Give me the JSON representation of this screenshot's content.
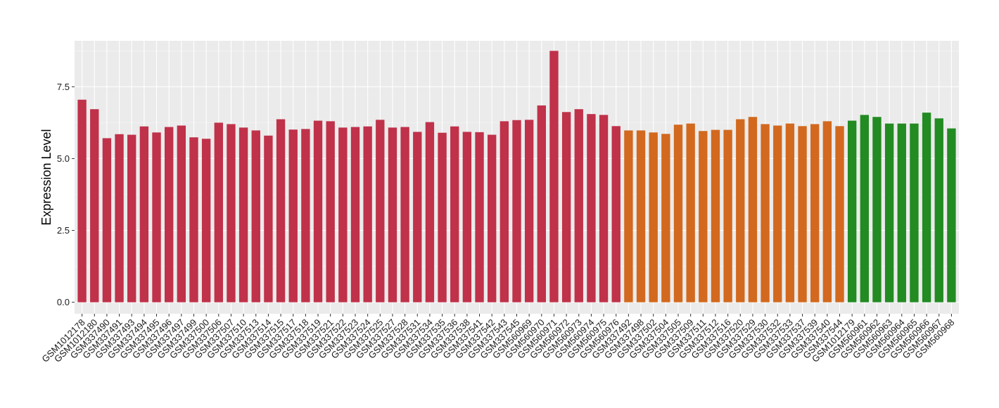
{
  "chart_data": {
    "type": "bar",
    "title": "",
    "xlabel": "",
    "ylabel": "Expression Level",
    "ylim": [
      -0.4,
      9.1
    ],
    "yticks": [
      0.0,
      2.5,
      5.0,
      7.5
    ],
    "ytick_labels": [
      "0.0",
      "2.5",
      "5.0",
      "7.5"
    ],
    "grid": true,
    "legend": "none",
    "categories": [
      "GSM1012178",
      "GSM1012180",
      "GSM337490",
      "GSM337491",
      "GSM337493",
      "GSM337494",
      "GSM337495",
      "GSM337496",
      "GSM337497",
      "GSM337499",
      "GSM337500",
      "GSM337506",
      "GSM337507",
      "GSM337510",
      "GSM337513",
      "GSM337514",
      "GSM337515",
      "GSM337517",
      "GSM337518",
      "GSM337519",
      "GSM337521",
      "GSM337522",
      "GSM337523",
      "GSM337524",
      "GSM337525",
      "GSM337527",
      "GSM337528",
      "GSM337531",
      "GSM337534",
      "GSM337535",
      "GSM337536",
      "GSM337538",
      "GSM337541",
      "GSM337542",
      "GSM337543",
      "GSM337545",
      "GSM560969",
      "GSM560970",
      "GSM560971",
      "GSM560972",
      "GSM560973",
      "GSM560974",
      "GSM560975",
      "GSM560976",
      "GSM337492",
      "GSM337498",
      "GSM337502",
      "GSM337504",
      "GSM337505",
      "GSM337509",
      "GSM337511",
      "GSM337512",
      "GSM337516",
      "GSM337520",
      "GSM337529",
      "GSM337530",
      "GSM337532",
      "GSM337533",
      "GSM337537",
      "GSM337539",
      "GSM337540",
      "GSM337544",
      "GSM1012179",
      "GSM560961",
      "GSM560962",
      "GSM560963",
      "GSM560964",
      "GSM560965",
      "GSM560966",
      "GSM560967",
      "GSM560968"
    ],
    "values": [
      7.05,
      6.72,
      5.71,
      5.85,
      5.83,
      6.12,
      5.91,
      6.1,
      6.15,
      5.74,
      5.69,
      6.25,
      6.2,
      6.08,
      5.98,
      5.8,
      6.37,
      6.01,
      6.03,
      6.32,
      6.3,
      6.08,
      6.1,
      6.12,
      6.35,
      6.08,
      6.1,
      5.93,
      6.27,
      5.9,
      6.12,
      5.93,
      5.92,
      5.83,
      6.3,
      6.34,
      6.35,
      6.85,
      8.75,
      6.62,
      6.72,
      6.55,
      6.52,
      6.13,
      5.98,
      5.98,
      5.91,
      5.86,
      6.18,
      6.22,
      5.96,
      6.0,
      6.0,
      6.37,
      6.45,
      6.2,
      6.15,
      6.22,
      6.13,
      6.2,
      6.3,
      6.13,
      6.32,
      6.52,
      6.45,
      6.22,
      6.22,
      6.22,
      6.6,
      6.4,
      6.05
    ],
    "bar_colors": {
      "first": "#C0314A",
      "second": "#D2691E",
      "third": "#228B22"
    },
    "group_sizes": [
      44,
      18,
      9
    ]
  }
}
